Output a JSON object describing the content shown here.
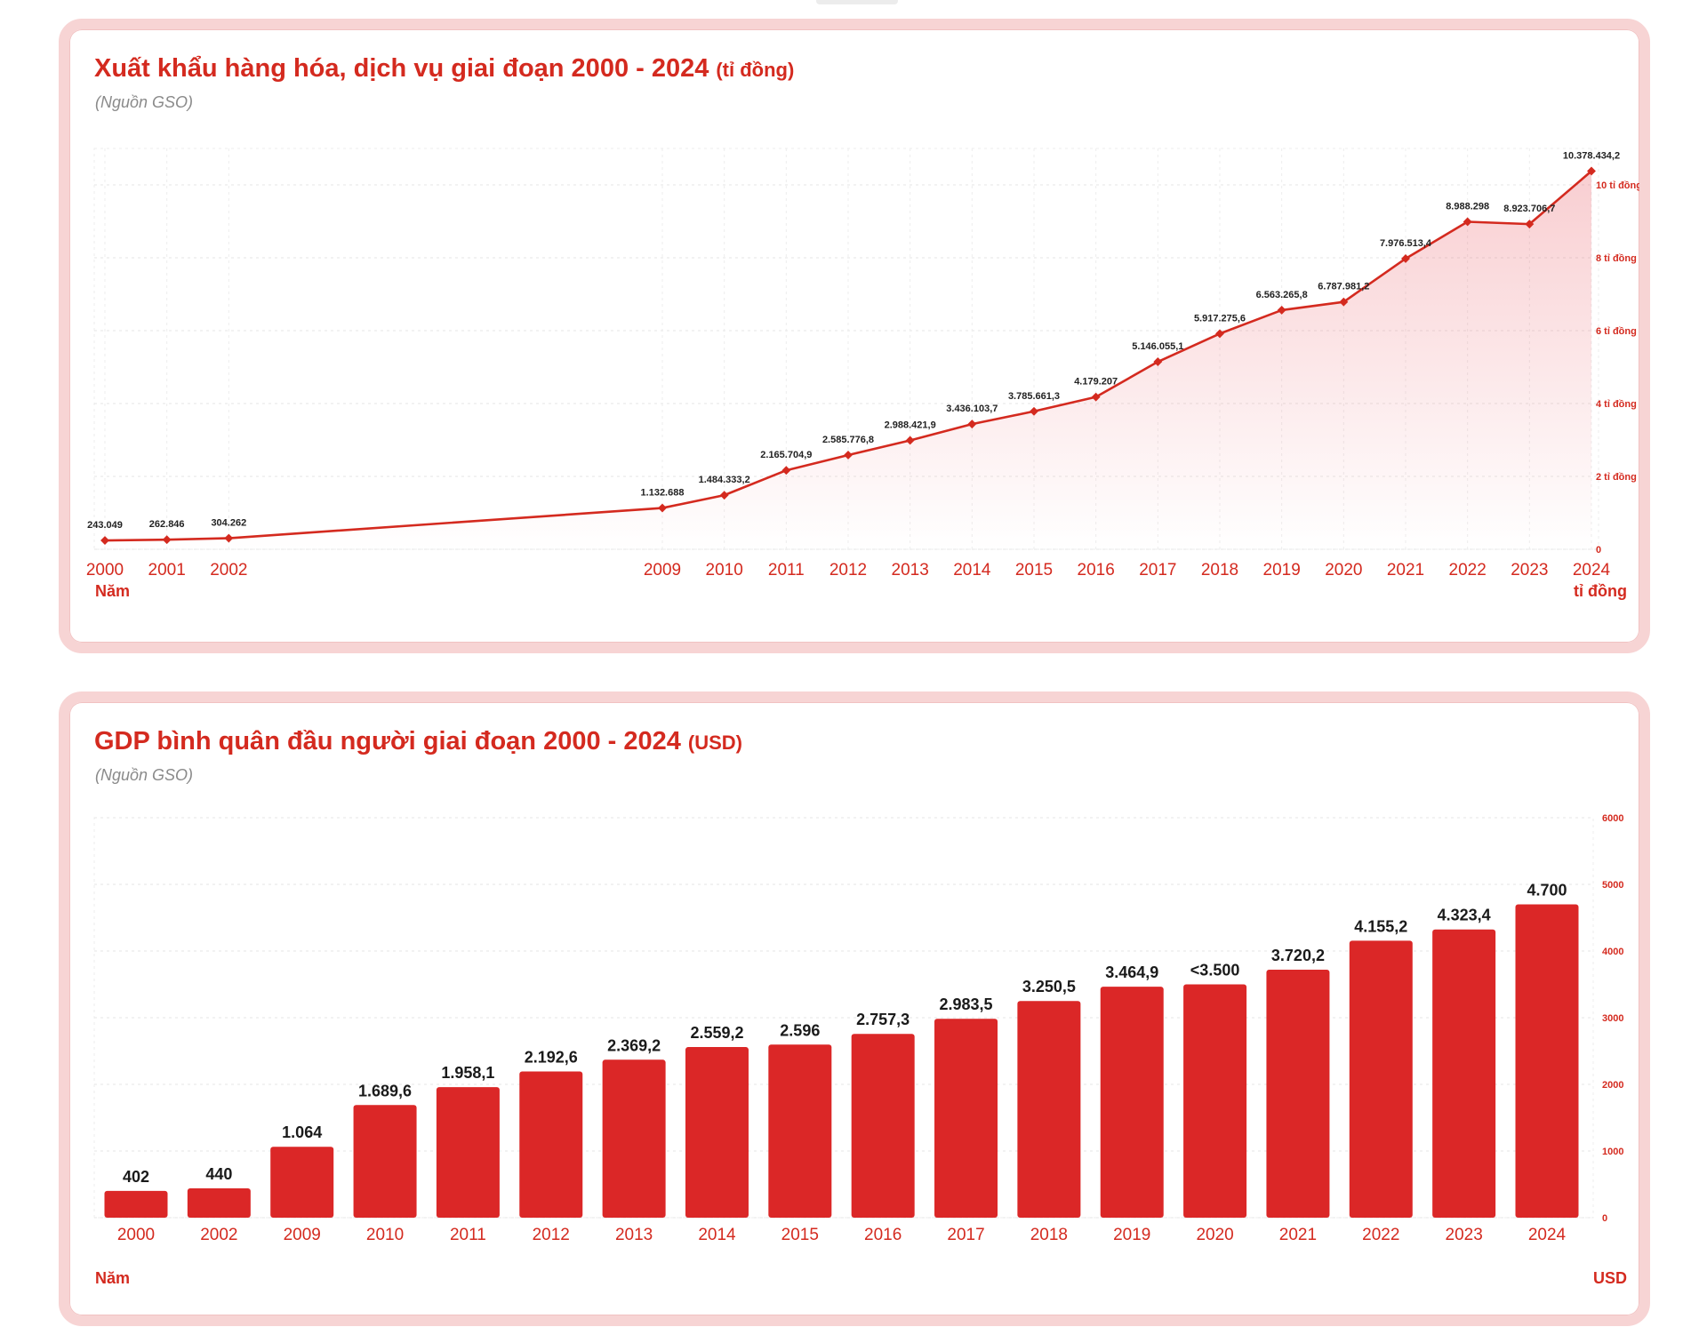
{
  "charts": [
    {
      "title": "Xuất khẩu hàng hóa, dịch vụ giai đoạn 2000 - 2024",
      "title_unit": "(tỉ đồng)",
      "source": "(Nguồn GSO)",
      "xlabel": "Năm",
      "ylabel": "tỉ đồng"
    },
    {
      "title": "GDP bình quân đầu người giai đoạn 2000 - 2024",
      "title_unit": "(USD)",
      "source": "(Nguồn GSO)",
      "xlabel": "Năm",
      "ylabel": "USD"
    }
  ],
  "chart_data": [
    {
      "type": "line",
      "title": "Xuất khẩu hàng hóa, dịch vụ giai đoạn 2000 - 2024 (tỉ đồng)",
      "xlabel": "Năm",
      "ylabel": "tỉ đồng",
      "x": [
        2000,
        2001,
        2002,
        2009,
        2010,
        2011,
        2012,
        2013,
        2014,
        2015,
        2016,
        2017,
        2018,
        2019,
        2020,
        2021,
        2022,
        2023,
        2024
      ],
      "x_labels": [
        "2000",
        "2001",
        "2002",
        "2009",
        "2010",
        "2011",
        "2012",
        "2013",
        "2014",
        "2015",
        "2016",
        "2017",
        "2018",
        "2019",
        "2020",
        "2021",
        "2022",
        "2023",
        "2024"
      ],
      "values": [
        243049,
        262846,
        304262,
        1132688,
        1484333.2,
        2165704.9,
        2585776.8,
        2988421.9,
        3436103.7,
        3785661.3,
        4179207,
        5146055.1,
        5917275.6,
        6563265.8,
        6787981.2,
        7976513.4,
        8988298,
        8923706.7,
        10378434.2
      ],
      "data_labels": [
        "243.049",
        "262.846",
        "304.262",
        "1.132.688",
        "1.484.333,2",
        "2.165.704,9",
        "2.585.776,8",
        "2.988.421,9",
        "3.436.103,7",
        "3.785.661,3",
        "4.179.207",
        "5.146.055,1",
        "5.917.275,6",
        "6.563.265,8",
        "6.787.981,2",
        "7.976.513,4",
        "8.988.298",
        "8.923.706,7",
        "10.378.434,2"
      ],
      "y_ticks": [
        0,
        2000000,
        4000000,
        6000000,
        8000000,
        10000000
      ],
      "y_tick_labels": [
        "0",
        "2 tỉ đồng",
        "4 tỉ đồng",
        "6 tỉ đồng",
        "8 tỉ đồng",
        "10 tỉ đồng"
      ],
      "ylim": [
        0,
        11000000
      ],
      "y_axis_position": "right",
      "grid": true,
      "color": "#d42a1f"
    },
    {
      "type": "bar",
      "title": "GDP bình quân đầu người giai đoạn 2000 - 2024 (USD)",
      "xlabel": "Năm",
      "ylabel": "USD",
      "categories": [
        "2000",
        "2002",
        "2009",
        "2010",
        "2011",
        "2012",
        "2013",
        "2014",
        "2015",
        "2016",
        "2017",
        "2018",
        "2019",
        "2020",
        "2021",
        "2022",
        "2023",
        "2024"
      ],
      "values": [
        402,
        440,
        1064,
        1689.6,
        1958.1,
        2192.6,
        2369.2,
        2559.2,
        2596,
        2757.3,
        2983.5,
        3250.5,
        3464.9,
        3500,
        3720.2,
        4155.2,
        4323.4,
        4700
      ],
      "data_labels": [
        "402",
        "440",
        "1.064",
        "1.689,6",
        "1.958,1",
        "2.192,6",
        "2.369,2",
        "2.559,2",
        "2.596",
        "2.757,3",
        "2.983,5",
        "3.250,5",
        "3.464,9",
        "<3.500",
        "3.720,2",
        "4.155,2",
        "4.323,4",
        "4.700"
      ],
      "y_ticks": [
        0,
        1000,
        2000,
        3000,
        4000,
        5000,
        6000
      ],
      "y_tick_labels": [
        "0",
        "1000",
        "2000",
        "3000",
        "4000",
        "5000",
        "6000"
      ],
      "ylim": [
        0,
        6000
      ],
      "y_axis_position": "right",
      "grid": true,
      "color": "#db2727"
    }
  ]
}
